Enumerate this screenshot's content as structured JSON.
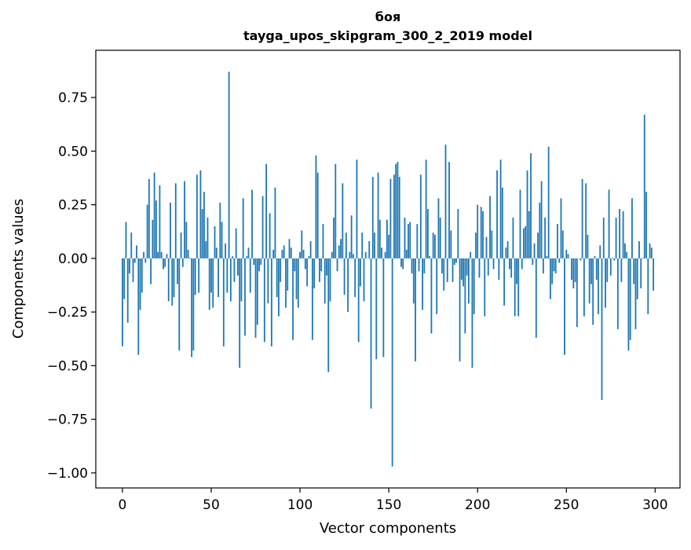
{
  "chart_data": {
    "type": "bar",
    "title": "боя",
    "subtitle": "tayga_upos_skipgram_300_2_2019 model",
    "xlabel": "Vector components",
    "ylabel": "Components values",
    "xlim": [
      -15,
      314
    ],
    "ylim": [
      -1.07,
      0.97
    ],
    "xticks": [
      0,
      50,
      100,
      150,
      200,
      250,
      300
    ],
    "xtick_labels": [
      "0",
      "50",
      "100",
      "150",
      "200",
      "250",
      "300"
    ],
    "yticks": [
      -1.0,
      -0.75,
      -0.5,
      -0.25,
      0.0,
      0.25,
      0.5,
      0.75
    ],
    "ytick_labels": [
      "−1.00",
      "−0.75",
      "−0.50",
      "−0.25",
      "0.00",
      "0.25",
      "0.50",
      "0.75"
    ],
    "grid": false,
    "bar_color": "#1f77b4",
    "values": [
      -0.41,
      -0.19,
      0.17,
      -0.3,
      -0.07,
      0.12,
      -0.11,
      -0.02,
      0.06,
      -0.45,
      -0.24,
      -0.16,
      0.03,
      -0.02,
      0.25,
      0.37,
      -0.12,
      0.18,
      0.4,
      0.27,
      0.03,
      0.34,
      0.03,
      -0.05,
      -0.04,
      0.02,
      -0.2,
      0.26,
      -0.22,
      -0.18,
      0.35,
      -0.12,
      -0.43,
      0.12,
      -0.04,
      0.36,
      0.17,
      0.04,
      0.003,
      -0.46,
      -0.43,
      -0.17,
      0.39,
      -0.16,
      0.41,
      0.23,
      0.31,
      0.08,
      0.19,
      -0.24,
      -0.16,
      -0.23,
      0.15,
      0.05,
      -0.18,
      0.26,
      0.17,
      -0.41,
      0.07,
      -0.16,
      0.87,
      -0.2,
      0.01,
      -0.11,
      0.14,
      -0.08,
      -0.51,
      -0.2,
      0.28,
      -0.36,
      0.01,
      0.05,
      -0.16,
      0.32,
      -0.03,
      -0.37,
      -0.31,
      -0.06,
      -0.03,
      0.29,
      -0.39,
      0.44,
      -0.21,
      0.21,
      -0.41,
      0.04,
      0.33,
      -0.18,
      -0.27,
      -0.11,
      0.04,
      0.06,
      -0.23,
      -0.15,
      0.09,
      0.05,
      -0.38,
      -0.06,
      -0.19,
      -0.23,
      0.03,
      0.13,
      0.04,
      -0.05,
      -0.13,
      0.01,
      0.08,
      -0.38,
      -0.14,
      0.48,
      0.4,
      -0.11,
      -0.06,
      0.16,
      -0.21,
      -0.08,
      -0.53,
      -0.2,
      0.03,
      0.19,
      0.44,
      -0.06,
      0.06,
      0.09,
      0.35,
      -0.17,
      0.12,
      -0.25,
      0.03,
      0.2,
      0.02,
      -0.18,
      0.46,
      -0.39,
      -0.13,
      0.12,
      -0.2,
      0.03,
      0.0,
      0.08,
      -0.7,
      0.38,
      0.12,
      -0.47,
      0.4,
      0.18,
      0.05,
      -0.46,
      0.03,
      0.18,
      0.11,
      0.37,
      -0.97,
      0.39,
      0.44,
      0.45,
      0.38,
      -0.04,
      -0.05,
      0.19,
      0.04,
      0.16,
      0.17,
      -0.07,
      -0.21,
      -0.48,
      0.16,
      -0.06,
      0.39,
      -0.24,
      -0.07,
      0.46,
      0.23,
      0.01,
      -0.35,
      0.12,
      0.11,
      -0.26,
      0.28,
      0.19,
      -0.07,
      -0.15,
      0.53,
      -0.11,
      0.45,
      0.13,
      -0.11,
      -0.03,
      -0.02,
      0.23,
      -0.48,
      -0.1,
      -0.13,
      -0.35,
      -0.08,
      -0.21,
      0.03,
      -0.51,
      -0.26,
      0.12,
      0.25,
      -0.09,
      0.24,
      0.22,
      -0.27,
      0.1,
      -0.08,
      0.29,
      0.13,
      -0.05,
      0.0,
      0.41,
      -0.1,
      0.46,
      0.33,
      -0.22,
      0.05,
      0.08,
      -0.05,
      -0.09,
      0.19,
      -0.27,
      -0.12,
      -0.27,
      0.32,
      -0.05,
      0.14,
      0.15,
      0.41,
      0.22,
      0.49,
      -0.03,
      0.07,
      -0.37,
      0.12,
      0.26,
      0.36,
      -0.07,
      0.19,
      0.01,
      0.52,
      -0.19,
      -0.12,
      -0.06,
      -0.07,
      0.16,
      -0.02,
      0.28,
      0.13,
      -0.45,
      0.04,
      0.02,
      0.0,
      -0.1,
      -0.14,
      -0.11,
      -0.32,
      0.0,
      -0.01,
      0.37,
      -0.27,
      0.35,
      0.11,
      -0.21,
      -0.12,
      -0.31,
      0.01,
      -0.1,
      -0.26,
      0.06,
      -0.66,
      0.19,
      -0.23,
      -0.11,
      0.32,
      -0.08,
      0.003,
      -0.01,
      0.19,
      -0.33,
      0.23,
      -0.11,
      0.22,
      0.07,
      0.03,
      -0.43,
      -0.38,
      0.28,
      -0.12,
      -0.33,
      -0.19,
      0.08,
      -0.14,
      0.003,
      0.67,
      0.31,
      -0.26,
      0.07,
      0.05,
      -0.15
    ]
  }
}
